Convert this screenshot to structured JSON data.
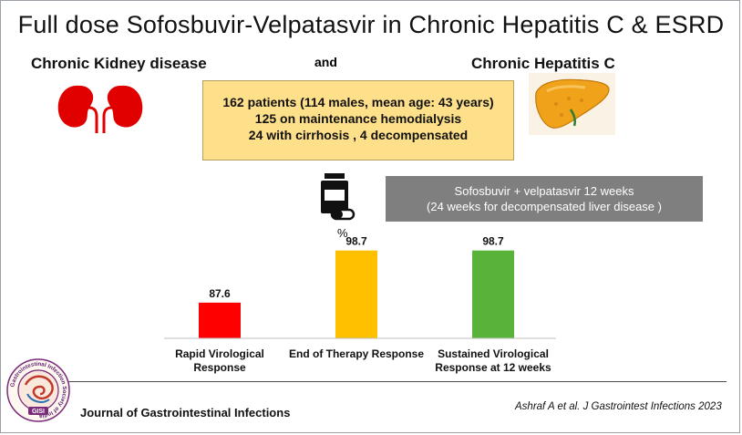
{
  "title": "Full dose Sofosbuvir-Velpatasvir in Chronic Hepatitis C & ESRD",
  "left_header": "Chronic Kidney disease",
  "connector": "and",
  "right_header": "Chronic Hepatitis C",
  "patients_box": {
    "line1": "162 patients (114 males, mean age: 43 years)",
    "line2": "125 on maintenance hemodialysis",
    "line3": "24 with cirrhosis , 4 decompensated"
  },
  "regimen_box": {
    "line1": "Sofosbuvir + velpatasvir 12 weeks",
    "line2": "(24 weeks for decompensated liver disease )"
  },
  "journal": "Journal of Gastrointestinal Infections",
  "citation": "Ashraf A et al. J Gastrointest Infections  2023",
  "logo": {
    "ring_text": "Gastrointestinal Infection Society of India",
    "center_text": "GISI"
  },
  "icons": [
    "kidneys-icon",
    "liver-icon",
    "pill-bottle-icon"
  ],
  "chart_data": {
    "type": "bar",
    "unit_label": "%",
    "categories": [
      [
        "Rapid Virological",
        "Response"
      ],
      [
        "End of Therapy Response"
      ],
      [
        "Sustained Virological",
        "Response at 12 weeks"
      ]
    ],
    "values": [
      87.6,
      98.7,
      98.7
    ],
    "value_labels": [
      "87.6",
      "98.7",
      "98.7"
    ],
    "colors": [
      "#ff0000",
      "#ffc000",
      "#59b33a"
    ],
    "ylim": [
      80,
      100
    ],
    "grid": false
  }
}
